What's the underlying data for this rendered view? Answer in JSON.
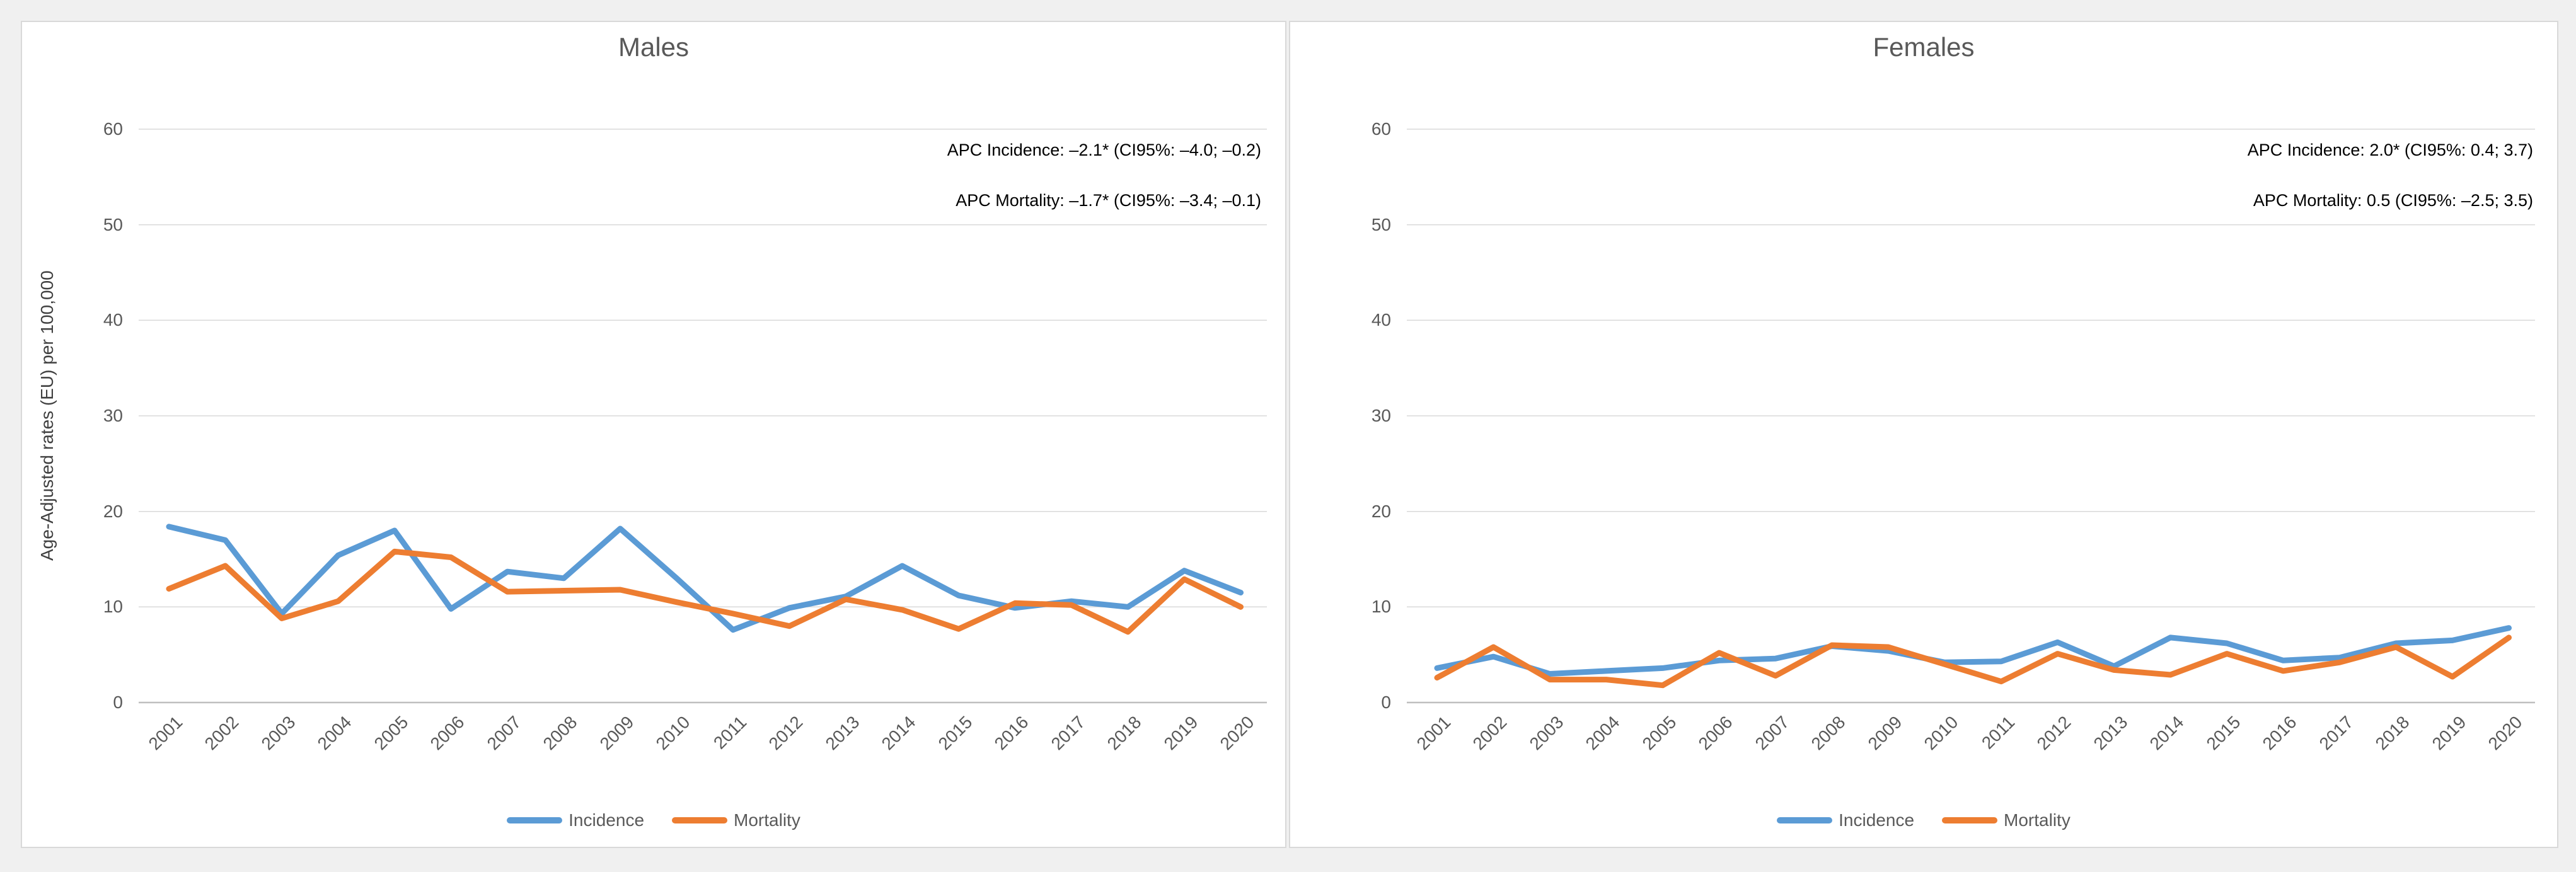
{
  "page": {
    "background": "#f0f0f0",
    "panel_border_color": "#d9d9d9",
    "gridline_color": "#d9d9d9",
    "axis_line_color": "#bfbfbf",
    "text_color": "#595959"
  },
  "charts": [
    {
      "title": "Males",
      "y_axis_title": "Age-Adjusted rates (EU) per 100,000",
      "annotations": [
        "APC Incidence: –2.1* (CI95%: –4.0; –0.2)",
        "APC Mortality: –1.7* (CI95%: –3.4; –0.1)"
      ]
    },
    {
      "title": "Females",
      "annotations": [
        "APC Incidence: 2.0* (CI95%: 0.4; 3.7)",
        "APC Mortality: 0.5 (CI95%: –2.5; 3.5)"
      ]
    }
  ],
  "chart_data": [
    {
      "type": "line",
      "title": "Males",
      "ylabel": "Age-Adjusted rates (EU) per 100,000",
      "ylim": [
        0,
        60
      ],
      "y_ticks": [
        0,
        10,
        20,
        30,
        40,
        50,
        60
      ],
      "grid": true,
      "legend_position": "bottom",
      "categories": [
        "2001",
        "2002",
        "2003",
        "2004",
        "2005",
        "2006",
        "2007",
        "2008",
        "2009",
        "2010",
        "2011",
        "2012",
        "2013",
        "2014",
        "2015",
        "2016",
        "2017",
        "2018",
        "2019",
        "2020"
      ],
      "series": [
        {
          "name": "Incidence",
          "color": "#5B9BD5",
          "values": [
            18.4,
            17.0,
            9.3,
            15.4,
            18.0,
            9.8,
            13.7,
            13.0,
            18.2,
            13.0,
            7.6,
            9.9,
            11.1,
            14.3,
            11.2,
            9.9,
            10.6,
            10.0,
            13.8,
            11.5
          ]
        },
        {
          "name": "Mortality",
          "color": "#ED7D31",
          "values": [
            11.9,
            14.3,
            8.8,
            10.6,
            15.8,
            15.2,
            11.6,
            11.7,
            11.8,
            10.5,
            9.3,
            8.0,
            10.8,
            9.7,
            7.7,
            10.4,
            10.2,
            7.4,
            12.9,
            10.0
          ]
        }
      ]
    },
    {
      "type": "line",
      "title": "Females",
      "ylabel": "",
      "ylim": [
        0,
        60
      ],
      "y_ticks": [
        0,
        10,
        20,
        30,
        40,
        50,
        60
      ],
      "grid": true,
      "legend_position": "bottom",
      "categories": [
        "2001",
        "2002",
        "2003",
        "2004",
        "2005",
        "2006",
        "2007",
        "2008",
        "2009",
        "2010",
        "2011",
        "2012",
        "2013",
        "2014",
        "2015",
        "2016",
        "2017",
        "2018",
        "2019",
        "2020"
      ],
      "series": [
        {
          "name": "Incidence",
          "color": "#5B9BD5",
          "values": [
            3.6,
            4.8,
            3.0,
            3.3,
            3.6,
            4.4,
            4.6,
            5.9,
            5.4,
            4.2,
            4.3,
            6.3,
            3.8,
            6.8,
            6.2,
            4.4,
            4.7,
            6.2,
            6.5,
            7.8
          ]
        },
        {
          "name": "Mortality",
          "color": "#ED7D31",
          "values": [
            2.6,
            5.8,
            2.4,
            2.4,
            1.8,
            5.2,
            2.8,
            6.0,
            5.8,
            4.0,
            2.2,
            5.1,
            3.4,
            2.9,
            5.1,
            3.3,
            4.2,
            5.8,
            2.7,
            6.8
          ]
        }
      ]
    }
  ]
}
